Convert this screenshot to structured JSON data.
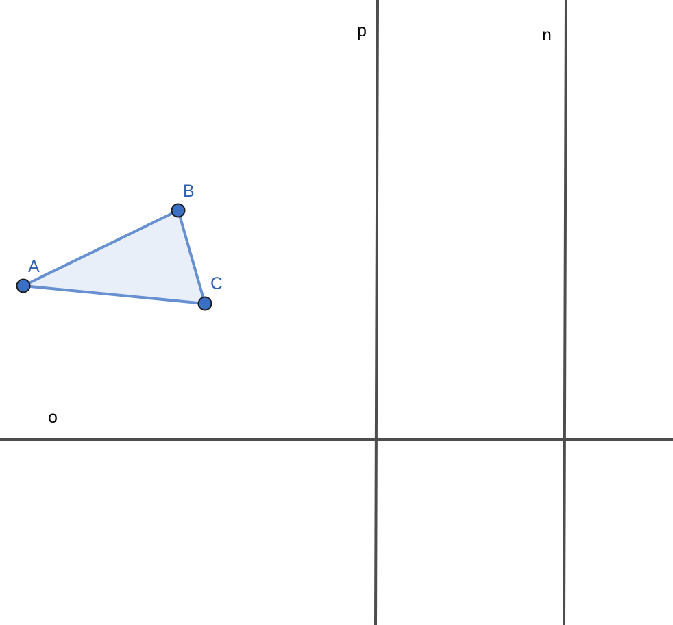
{
  "lines": {
    "p": {
      "label": "p"
    },
    "n": {
      "label": "n"
    },
    "o": {
      "label": "o"
    }
  },
  "points": {
    "A": {
      "label": "A"
    },
    "B": {
      "label": "B"
    },
    "C": {
      "label": "C"
    }
  },
  "colors": {
    "line": "#4d4d4d",
    "triangle_stroke": "#6690d0",
    "triangle_fill": "#e8eff8",
    "point_fill": "#3a6fc4",
    "point_stroke": "#1a1a1a",
    "point_label": "#2f5fb0"
  }
}
